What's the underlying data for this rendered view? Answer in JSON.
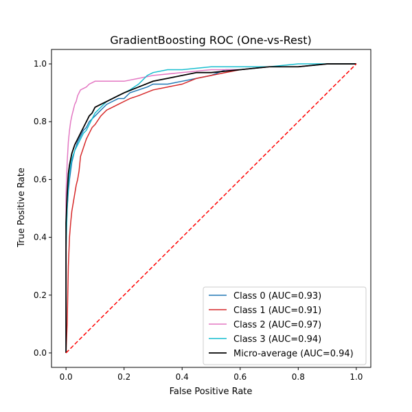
{
  "chart_data": {
    "type": "line",
    "title": "GradientBoosting ROC (One-vs-Rest)",
    "xlabel": "False Positive Rate",
    "ylabel": "True Positive Rate",
    "xlim": [
      -0.05,
      1.05
    ],
    "ylim": [
      -0.05,
      1.05
    ],
    "xticks": [
      "0.0",
      "0.2",
      "0.4",
      "0.6",
      "0.8",
      "1.0"
    ],
    "yticks": [
      "0.0",
      "0.2",
      "0.4",
      "0.6",
      "0.8",
      "1.0"
    ],
    "grid": false,
    "legend_position": "lower right",
    "series": [
      {
        "name": "Class 0 (AUC=0.93)",
        "color": "#1f77b4",
        "x": [
          0,
          0,
          0.004,
          0.008,
          0.012,
          0.016,
          0.02,
          0.03,
          0.04,
          0.05,
          0.06,
          0.07,
          0.08,
          0.09,
          0.1,
          0.12,
          0.14,
          0.16,
          0.18,
          0.2,
          0.22,
          0.25,
          0.28,
          0.3,
          0.35,
          0.4,
          0.45,
          0.5,
          0.55,
          0.6,
          0.7,
          0.8,
          0.9,
          1.0
        ],
        "y": [
          0,
          0.4,
          0.5,
          0.56,
          0.6,
          0.63,
          0.66,
          0.7,
          0.73,
          0.75,
          0.77,
          0.78,
          0.8,
          0.81,
          0.82,
          0.84,
          0.86,
          0.87,
          0.88,
          0.88,
          0.9,
          0.91,
          0.92,
          0.93,
          0.93,
          0.94,
          0.95,
          0.96,
          0.98,
          0.98,
          0.99,
          0.99,
          1.0,
          1.0
        ]
      },
      {
        "name": "Class 1 (AUC=0.91)",
        "color": "#d62728",
        "x": [
          0,
          0.004,
          0.008,
          0.012,
          0.016,
          0.02,
          0.025,
          0.03,
          0.035,
          0.04,
          0.045,
          0.05,
          0.06,
          0.07,
          0.08,
          0.09,
          0.1,
          0.12,
          0.14,
          0.16,
          0.18,
          0.2,
          0.22,
          0.25,
          0.3,
          0.35,
          0.4,
          0.45,
          0.5,
          0.55,
          0.6,
          0.7,
          0.8,
          0.9,
          1.0
        ],
        "y": [
          0,
          0.1,
          0.3,
          0.4,
          0.45,
          0.49,
          0.52,
          0.55,
          0.58,
          0.6,
          0.63,
          0.68,
          0.71,
          0.74,
          0.76,
          0.78,
          0.79,
          0.82,
          0.84,
          0.85,
          0.86,
          0.87,
          0.88,
          0.89,
          0.91,
          0.92,
          0.93,
          0.95,
          0.96,
          0.97,
          0.98,
          0.99,
          0.99,
          1.0,
          1.0
        ]
      },
      {
        "name": "Class 2 (AUC=0.97)",
        "color": "#e377c2",
        "x": [
          0,
          0,
          0.004,
          0.008,
          0.012,
          0.016,
          0.02,
          0.025,
          0.03,
          0.035,
          0.04,
          0.045,
          0.05,
          0.06,
          0.07,
          0.08,
          0.09,
          0.1,
          0.15,
          0.2,
          0.25,
          0.3,
          0.4,
          0.5,
          0.6,
          0.7,
          0.8,
          0.9,
          1.0
        ],
        "y": [
          0,
          0.55,
          0.66,
          0.73,
          0.77,
          0.8,
          0.82,
          0.84,
          0.86,
          0.87,
          0.89,
          0.9,
          0.91,
          0.915,
          0.92,
          0.93,
          0.935,
          0.94,
          0.94,
          0.94,
          0.95,
          0.96,
          0.97,
          0.98,
          0.98,
          0.99,
          0.99,
          1.0,
          1.0
        ]
      },
      {
        "name": "Class 3 (AUC=0.94)",
        "color": "#17becf",
        "x": [
          0,
          0,
          0.004,
          0.008,
          0.012,
          0.016,
          0.02,
          0.03,
          0.04,
          0.05,
          0.06,
          0.07,
          0.08,
          0.09,
          0.1,
          0.12,
          0.14,
          0.16,
          0.18,
          0.2,
          0.22,
          0.25,
          0.28,
          0.3,
          0.35,
          0.4,
          0.5,
          0.6,
          0.7,
          0.8,
          0.9,
          1.0
        ],
        "y": [
          0,
          0.35,
          0.5,
          0.58,
          0.62,
          0.65,
          0.67,
          0.7,
          0.72,
          0.74,
          0.76,
          0.77,
          0.79,
          0.81,
          0.83,
          0.85,
          0.87,
          0.88,
          0.89,
          0.9,
          0.91,
          0.93,
          0.96,
          0.97,
          0.98,
          0.98,
          0.99,
          0.99,
          0.99,
          1.0,
          1.0,
          1.0
        ]
      },
      {
        "name": "Micro-average (AUC=0.94)",
        "color": "#000000",
        "x": [
          0,
          0,
          0.004,
          0.008,
          0.012,
          0.016,
          0.02,
          0.03,
          0.04,
          0.05,
          0.06,
          0.07,
          0.08,
          0.09,
          0.1,
          0.12,
          0.14,
          0.16,
          0.18,
          0.2,
          0.25,
          0.3,
          0.35,
          0.4,
          0.45,
          0.5,
          0.6,
          0.7,
          0.8,
          0.9,
          1.0
        ],
        "y": [
          0,
          0.45,
          0.55,
          0.62,
          0.65,
          0.67,
          0.69,
          0.72,
          0.74,
          0.76,
          0.78,
          0.8,
          0.82,
          0.83,
          0.85,
          0.86,
          0.87,
          0.88,
          0.89,
          0.9,
          0.92,
          0.94,
          0.95,
          0.96,
          0.97,
          0.97,
          0.98,
          0.99,
          0.99,
          1.0,
          1.0
        ]
      }
    ],
    "reference_line": {
      "x": [
        0,
        1
      ],
      "y": [
        0,
        1
      ],
      "color": "#ff0000",
      "style": "dashed"
    }
  }
}
